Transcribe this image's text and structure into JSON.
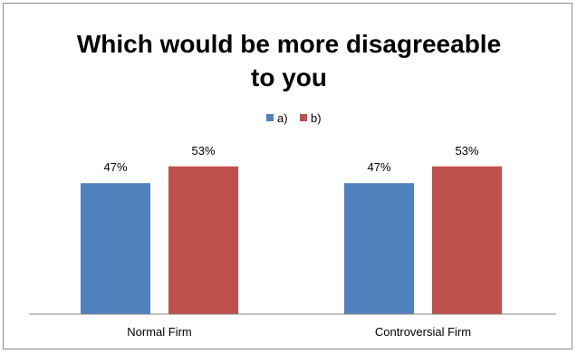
{
  "chart_data": {
    "type": "bar",
    "title_lines": [
      "Which would be more disagreeable",
      "to you"
    ],
    "categories": [
      "Normal Firm",
      "Controversial Firm"
    ],
    "series": [
      {
        "name": "a)",
        "values": [
          47,
          47
        ],
        "labels": [
          "47%",
          "47%"
        ],
        "color": "#4f81bd"
      },
      {
        "name": "b)",
        "values": [
          53,
          53
        ],
        "labels": [
          "53%",
          "53%"
        ],
        "color": "#c0504d"
      }
    ],
    "xlabel": "",
    "ylabel": "",
    "ylim": [
      0,
      100
    ],
    "grid": false,
    "legend_position": "top",
    "axis_color": "#868686"
  }
}
